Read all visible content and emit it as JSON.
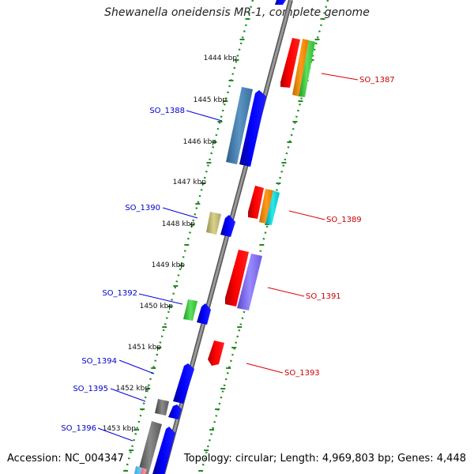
{
  "title": "Shewanella oneidensis MR-1, complete genome",
  "footer": {
    "accession": "Accession: NC_004347",
    "topology": "Topology: circular; Length: 4,969,803 bp; Genes: 4,448"
  },
  "ticks": [
    {
      "label": "1444 kbp"
    },
    {
      "label": "1445 kbp"
    },
    {
      "label": "1446 kbp"
    },
    {
      "label": "1447 kbp"
    },
    {
      "label": "1448 kbp"
    },
    {
      "label": "1449 kbp"
    },
    {
      "label": "1450 kbp"
    },
    {
      "label": "1451 kbp"
    },
    {
      "label": "1452 kbp"
    },
    {
      "label": "1453 kbp"
    }
  ],
  "gene_labels_left": [
    {
      "label": "SO_1388",
      "color": "#0000cc"
    },
    {
      "label": "SO_1390",
      "color": "#0000cc"
    },
    {
      "label": "SO_1392",
      "color": "#0000cc"
    },
    {
      "label": "SO_1394",
      "color": "#0000cc"
    },
    {
      "label": "SO_1395",
      "color": "#0000cc"
    },
    {
      "label": "SO_1396",
      "color": "#0000cc"
    }
  ],
  "gene_labels_right": [
    {
      "label": "SO_1387",
      "color": "#cc0000"
    },
    {
      "label": "SO_1389",
      "color": "#cc0000"
    },
    {
      "label": "SO_1391",
      "color": "#cc0000"
    },
    {
      "label": "SO_1393",
      "color": "#cc0000"
    }
  ],
  "colors": {
    "forward_strand": "#0000ff",
    "reverse_strand": "#ff0000",
    "backbone": "#888888",
    "tick": "#228b22",
    "cog_blue": "#4682b4",
    "cog_orange": "#ff8c00",
    "cog_green": "#32cd32",
    "cog_cyan": "#00ced1",
    "cog_purple": "#7b68ee",
    "cog_khaki": "#bdb76b",
    "cog_grey": "#696969"
  }
}
